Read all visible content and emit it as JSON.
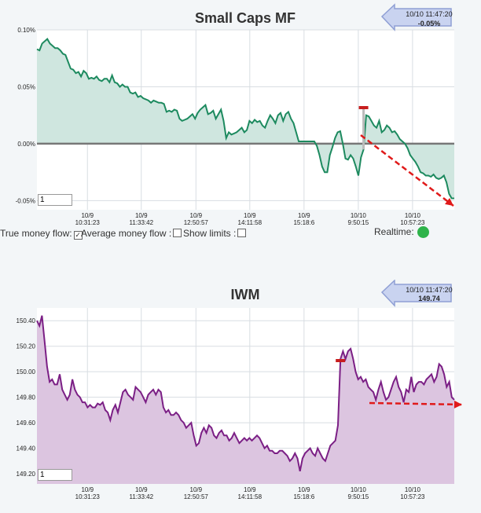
{
  "colors": {
    "mf_line": "#1d8a5f",
    "mf_fill": "#cfe6df",
    "iwm_line": "#7b1f85",
    "iwm_fill": "#dcc5e0",
    "zero_line": "#777777",
    "arrow": "#e01a1a",
    "badge_fill": "#c9d3f0",
    "badge_stroke": "#8f9fd4",
    "marker": "#c81e1e"
  },
  "chart_data": [
    {
      "type": "area",
      "title": "Small Caps MF",
      "badge": {
        "time": "10/10 11:47:20",
        "value": "-0.05%"
      },
      "y_ticks": [
        "0.10%",
        "0.05%",
        "0.00%",
        "-0.05%"
      ],
      "y_tick_values": [
        0.1,
        0.05,
        0.0,
        -0.05
      ],
      "ylim": [
        -0.058,
        0.1
      ],
      "x_ticks": [
        {
          "date": "10/9",
          "time": "10:31:23",
          "pos": 0.121
        },
        {
          "date": "10/9",
          "time": "11:33:42",
          "pos": 0.25
        },
        {
          "date": "10/9",
          "time": "12:50:57",
          "pos": 0.381
        },
        {
          "date": "10/9",
          "time": "14:11:58",
          "pos": 0.51
        },
        {
          "date": "10/9",
          "time": "15:18:6",
          "pos": 0.64
        },
        {
          "date": "10/10",
          "time": "9:50:15",
          "pos": 0.77
        },
        {
          "date": "10/10",
          "time": "10:57:23",
          "pos": 0.9
        }
      ],
      "values": [
        0.083,
        0.082,
        0.088,
        0.09,
        0.092,
        0.088,
        0.086,
        0.084,
        0.084,
        0.082,
        0.079,
        0.078,
        0.072,
        0.066,
        0.065,
        0.062,
        0.063,
        0.059,
        0.064,
        0.062,
        0.057,
        0.058,
        0.057,
        0.059,
        0.056,
        0.055,
        0.057,
        0.057,
        0.054,
        0.06,
        0.054,
        0.053,
        0.05,
        0.052,
        0.05,
        0.05,
        0.045,
        0.044,
        0.045,
        0.041,
        0.042,
        0.04,
        0.039,
        0.038,
        0.036,
        0.038,
        0.037,
        0.036,
        0.036,
        0.035,
        0.028,
        0.029,
        0.028,
        0.03,
        0.029,
        0.022,
        0.02,
        0.021,
        0.022,
        0.024,
        0.026,
        0.022,
        0.027,
        0.03,
        0.032,
        0.034,
        0.026,
        0.027,
        0.029,
        0.022,
        0.026,
        0.03,
        0.02,
        0.005,
        0.01,
        0.008,
        0.009,
        0.01,
        0.012,
        0.014,
        0.01,
        0.012,
        0.02,
        0.018,
        0.021,
        0.019,
        0.02,
        0.016,
        0.014,
        0.02,
        0.025,
        0.022,
        0.018,
        0.025,
        0.027,
        0.02,
        0.026,
        0.028,
        0.022,
        0.018,
        0.01,
        0.002,
        0.002,
        0.002,
        0.002,
        0.002,
        0.002,
        0.002,
        -0.002,
        -0.01,
        -0.02,
        -0.025,
        -0.025,
        -0.01,
        -0.003,
        0.005,
        0.01,
        0.011,
        0.0,
        -0.013,
        -0.014,
        -0.01,
        -0.013,
        -0.02,
        -0.028,
        -0.012,
        -0.005,
        0.025,
        0.024,
        0.02,
        0.016,
        0.014,
        0.02,
        0.01,
        0.012,
        0.016,
        0.014,
        0.01,
        0.011,
        0.008,
        0.004,
        0.002,
        0.0,
        -0.004,
        -0.01,
        -0.013,
        -0.016,
        -0.02,
        -0.025,
        -0.026,
        -0.028,
        -0.028,
        -0.029,
        -0.027,
        -0.03,
        -0.031,
        -0.03,
        -0.028,
        -0.034,
        -0.044,
        -0.048,
        -0.048
      ],
      "marker_index": 126,
      "input_value": "1"
    },
    {
      "type": "area",
      "title": "IWM",
      "badge": {
        "time": "10/10 11:47:20",
        "value": "149.74"
      },
      "y_ticks": [
        "150.40",
        "150.20",
        "150.00",
        "149.80",
        "149.60",
        "149.40",
        "149.20"
      ],
      "y_tick_values": [
        150.4,
        150.2,
        150.0,
        149.8,
        149.6,
        149.4,
        149.2
      ],
      "ylim": [
        149.12,
        150.5
      ],
      "x_ticks": [
        {
          "date": "10/9",
          "time": "10:31:23",
          "pos": 0.121
        },
        {
          "date": "10/9",
          "time": "11:33:42",
          "pos": 0.25
        },
        {
          "date": "10/9",
          "time": "12:50:57",
          "pos": 0.381
        },
        {
          "date": "10/9",
          "time": "14:11:58",
          "pos": 0.51
        },
        {
          "date": "10/9",
          "time": "15:18:6",
          "pos": 0.64
        },
        {
          "date": "10/10",
          "time": "9:50:15",
          "pos": 0.77
        },
        {
          "date": "10/10",
          "time": "10:57:23",
          "pos": 0.9
        }
      ],
      "values": [
        150.4,
        150.36,
        150.44,
        150.24,
        150.04,
        149.92,
        149.94,
        149.9,
        149.9,
        149.98,
        149.86,
        149.82,
        149.78,
        149.82,
        149.94,
        149.86,
        149.82,
        149.8,
        149.76,
        149.76,
        149.72,
        149.74,
        149.72,
        149.72,
        149.75,
        149.74,
        149.76,
        149.7,
        149.68,
        149.62,
        149.7,
        149.74,
        149.68,
        149.76,
        149.84,
        149.86,
        149.82,
        149.8,
        149.78,
        149.88,
        149.86,
        149.84,
        149.8,
        149.76,
        149.82,
        149.84,
        149.86,
        149.82,
        149.86,
        149.84,
        149.72,
        149.68,
        149.7,
        149.66,
        149.66,
        149.68,
        149.66,
        149.62,
        149.6,
        149.56,
        149.58,
        149.6,
        149.5,
        149.42,
        149.44,
        149.52,
        149.56,
        149.52,
        149.58,
        149.56,
        149.5,
        149.48,
        149.52,
        149.54,
        149.5,
        149.5,
        149.46,
        149.48,
        149.52,
        149.48,
        149.44,
        149.46,
        149.48,
        149.46,
        149.48,
        149.46,
        149.48,
        149.5,
        149.48,
        149.44,
        149.4,
        149.42,
        149.38,
        149.38,
        149.36,
        149.36,
        149.38,
        149.38,
        149.36,
        149.34,
        149.3,
        149.32,
        149.36,
        149.32,
        149.22,
        149.32,
        149.36,
        149.38,
        149.4,
        149.36,
        149.34,
        149.4,
        149.36,
        149.32,
        149.3,
        149.36,
        149.42,
        149.44,
        149.46,
        149.58,
        150.1,
        150.16,
        150.1,
        150.16,
        150.18,
        150.1,
        150.0,
        149.94,
        149.96,
        149.92,
        149.94,
        149.88,
        149.86,
        149.84,
        149.78,
        149.86,
        149.92,
        149.84,
        149.78,
        149.8,
        149.86,
        149.92,
        149.96,
        149.88,
        149.84,
        149.76,
        149.86,
        149.84,
        149.96,
        149.84,
        149.9,
        149.92,
        149.92,
        149.9,
        149.94,
        149.96,
        149.98,
        149.92,
        149.96,
        150.06,
        150.04,
        149.98,
        149.88,
        149.92,
        149.8,
        149.78
      ],
      "marker_index": 120,
      "input_value": "1"
    }
  ],
  "controls": {
    "true_money_flow": "True money flow:",
    "true_money_flow_checked": "✓",
    "average_money_flow": "Average money flow :",
    "show_limits": "Show limits :",
    "realtime": "Realtime:"
  }
}
